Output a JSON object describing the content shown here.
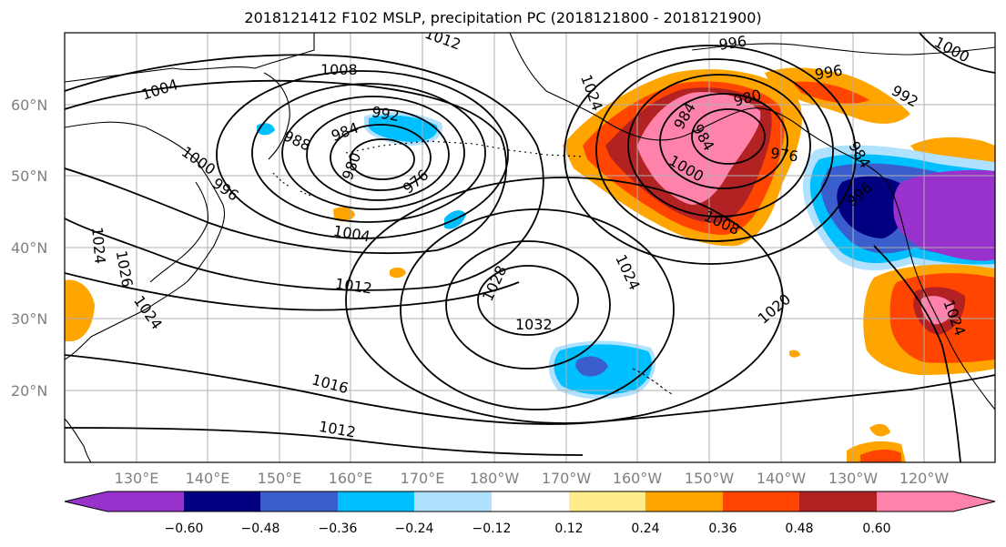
{
  "title": "2018121412 F102 MSLP, precipitation PC (2018121800 - 2018121900)",
  "lat_ticks": [
    "60°N",
    "50°N",
    "40°N",
    "30°N",
    "20°N"
  ],
  "lon_ticks": [
    "130°E",
    "140°E",
    "150°E",
    "160°E",
    "170°E",
    "180°W",
    "170°W",
    "160°W",
    "150°W",
    "140°W",
    "130°W",
    "120°W"
  ],
  "isobar_labels": [
    "1004",
    "1008",
    "1012",
    "1000",
    "996",
    "992",
    "988",
    "984",
    "980",
    "976",
    "1004",
    "1012",
    "1016",
    "1012",
    "1028",
    "1032",
    "1024",
    "1024",
    "1020",
    "1024",
    "996",
    "984",
    "1008",
    "1000",
    "976",
    "980",
    "984",
    "984",
    "996",
    "992",
    "1000",
    "996",
    "1024",
    "1026",
    "1024"
  ],
  "colorbar": {
    "ticks": [
      "−0.60",
      "−0.48",
      "−0.36",
      "−0.24",
      "−0.12",
      "0.12",
      "0.24",
      "0.36",
      "0.48",
      "0.60"
    ],
    "colors": [
      "#9932cc",
      "#000080",
      "#3a5fcd",
      "#00bfff",
      "#b0e2ff",
      "#ffffff",
      "#ffec8b",
      "#ffa500",
      "#ff4500",
      "#b22222",
      "#ff82ab",
      "#ff82ab"
    ]
  },
  "palette": {
    "purple": "#9932cc",
    "navy": "#000080",
    "blue": "#3a5fcd",
    "sky": "#00bfff",
    "light_blue": "#b0e2ff",
    "yellow": "#ffec8b",
    "orange": "#ffa500",
    "red_orange": "#ff4500",
    "dark_red": "#b22222",
    "pink": "#ff82ab"
  }
}
